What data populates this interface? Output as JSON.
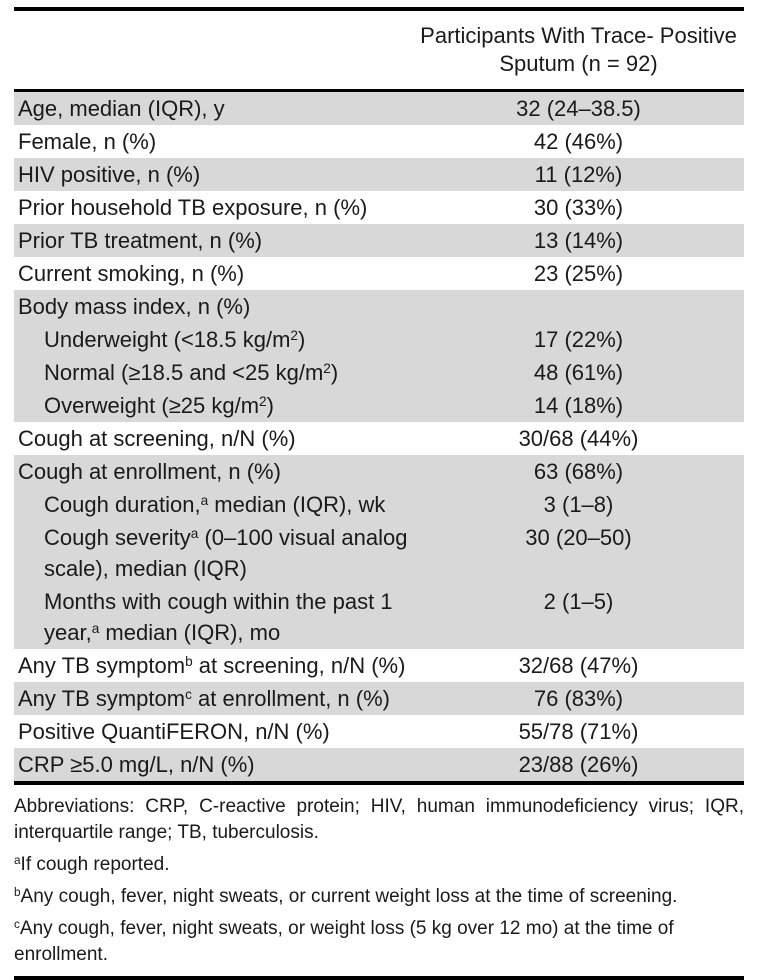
{
  "header": {
    "column_title_line1": "Participants With Trace- Positive",
    "column_title_line2": "Sputum (n = 92)"
  },
  "rows": [
    {
      "shaded": true,
      "indent": false,
      "label": [
        {
          "t": "Age, median (IQR), y"
        }
      ],
      "value": "32 (24–38.5)"
    },
    {
      "shaded": false,
      "indent": false,
      "label": [
        {
          "t": "Female, n (%)"
        }
      ],
      "value": "42 (46%)"
    },
    {
      "shaded": true,
      "indent": false,
      "label": [
        {
          "t": "HIV positive, n (%)"
        }
      ],
      "value": "11 (12%)"
    },
    {
      "shaded": false,
      "indent": false,
      "label": [
        {
          "t": "Prior household TB exposure, n (%)"
        }
      ],
      "value": "30 (33%)"
    },
    {
      "shaded": true,
      "indent": false,
      "label": [
        {
          "t": "Prior TB treatment, n (%)"
        }
      ],
      "value": "13 (14%)"
    },
    {
      "shaded": false,
      "indent": false,
      "label": [
        {
          "t": "Current smoking, n (%)"
        }
      ],
      "value": "23 (25%)"
    },
    {
      "shaded": true,
      "indent": false,
      "label": [
        {
          "t": "Body mass index, n (%)"
        }
      ],
      "value": ""
    },
    {
      "shaded": true,
      "indent": true,
      "label": [
        {
          "t": "Underweight (<18.5 kg/m"
        },
        {
          "sup": "2"
        },
        {
          "t": ")"
        }
      ],
      "value": "17 (22%)"
    },
    {
      "shaded": true,
      "indent": true,
      "label": [
        {
          "t": "Normal (≥18.5 and <25 kg/m"
        },
        {
          "sup": "2"
        },
        {
          "t": ")"
        }
      ],
      "value": "48 (61%)"
    },
    {
      "shaded": true,
      "indent": true,
      "label": [
        {
          "t": "Overweight (≥25 kg/m"
        },
        {
          "sup": "2"
        },
        {
          "t": ")"
        }
      ],
      "value": "14 (18%)"
    },
    {
      "shaded": false,
      "indent": false,
      "label": [
        {
          "t": "Cough at screening, n/N (%)"
        }
      ],
      "value": "30/68 (44%)"
    },
    {
      "shaded": true,
      "indent": false,
      "label": [
        {
          "t": "Cough at enrollment, n (%)"
        }
      ],
      "value": "63 (68%)"
    },
    {
      "shaded": true,
      "indent": true,
      "label": [
        {
          "t": "Cough duration,"
        },
        {
          "sup": "a"
        },
        {
          "t": " median (IQR), wk"
        }
      ],
      "value": "3 (1–8)"
    },
    {
      "shaded": true,
      "indent": true,
      "label": [
        {
          "t": "Cough severity"
        },
        {
          "sup": "a"
        },
        {
          "t": " (0–100 visual analog"
        },
        {
          "br": true
        },
        {
          "t": "scale), median (IQR)"
        }
      ],
      "value": "30 (20–50)"
    },
    {
      "shaded": true,
      "indent": true,
      "label": [
        {
          "t": "Months with cough within the past 1"
        },
        {
          "br": true
        },
        {
          "t": "year,"
        },
        {
          "sup": "a"
        },
        {
          "t": " median (IQR), mo"
        }
      ],
      "value": "2 (1–5)"
    },
    {
      "shaded": false,
      "indent": false,
      "label": [
        {
          "t": "Any TB symptom"
        },
        {
          "sup": "b"
        },
        {
          "t": " at screening, n/N (%)"
        }
      ],
      "value": "32/68 (47%)"
    },
    {
      "shaded": true,
      "indent": false,
      "label": [
        {
          "t": "Any TB symptom"
        },
        {
          "sup": "c"
        },
        {
          "t": " at enrollment, n (%)"
        }
      ],
      "value": "76 (83%)"
    },
    {
      "shaded": false,
      "indent": false,
      "label": [
        {
          "t": "Positive QuantiFERON, n/N (%)"
        }
      ],
      "value": "55/78 (71%)"
    },
    {
      "shaded": true,
      "indent": false,
      "label": [
        {
          "t": "CRP ≥5.0 mg/L, n/N (%)"
        }
      ],
      "value": "23/88 (26%)"
    }
  ],
  "footnotes": {
    "abbreviations": "Abbreviations: CRP, C-reactive protein; HIV, human immunodeficiency virus; IQR, interquartile range; TB, tuberculosis.",
    "items": [
      {
        "sup": "a",
        "text": "If cough reported."
      },
      {
        "sup": "b",
        "text": "Any cough, fever, night sweats, or current weight loss at the time of screening."
      },
      {
        "sup": "c",
        "text": "Any cough, fever, night sweats, or weight loss (5 kg over 12 mo) at the time of enrollment."
      }
    ]
  },
  "colors": {
    "row_shade": "#d8d8d8",
    "rule": "#000000",
    "text": "#1a1a1a"
  }
}
